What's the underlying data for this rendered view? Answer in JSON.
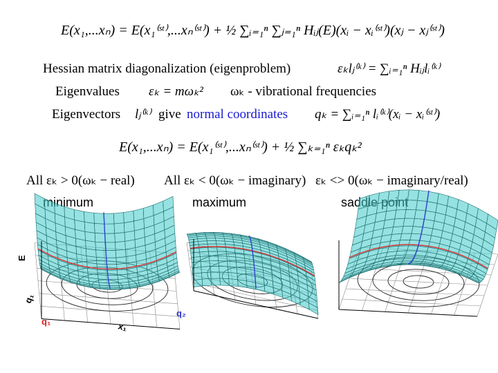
{
  "taylor_expansion": "E(x₁,...xₙ) = E(x₁⁽ˢᵗ⁾,...xₙ⁽ˢᵗ⁾) + ½ ∑ᵢ₌₁ⁿ ∑ⱼ₌₁ⁿ Hᵢⱼ(E)(xᵢ − xᵢ⁽ˢᵗ⁾)(xⱼ − xⱼ⁽ˢᵗ⁾)",
  "hessian": {
    "label": "Hessian matrix diagonalization (eigenproblem)",
    "formula": "εₖlⱼ⁽ᵏ⁾ = ∑ᵢ₌₁ⁿ Hᵢⱼlᵢ⁽ᵏ⁾"
  },
  "eigenvalues": {
    "label": "Eigenvalues",
    "formula": "εₖ = mωₖ²",
    "note": "ωₖ - vibrational frequencies"
  },
  "eigenvectors": {
    "label": "Eigenvectors",
    "symbol": "lⱼ⁽ᵏ⁾",
    "verb": "give",
    "highlight": "normal coordinates",
    "formula": "qₖ = ∑ᵢ₌₁ⁿ lᵢ⁽ᵏ⁾(xᵢ − xᵢ⁽ˢᵗ⁾)"
  },
  "normal_expansion": "E(x₁,...xₙ) = E(x₁⁽ˢᵗ⁾,...xₙ⁽ˢᵗ⁾) + ½ ∑ₖ₌₁ⁿ εₖqₖ²",
  "cases": [
    {
      "condition": "All εₖ > 0(ωₖ − real)",
      "name": "minimum"
    },
    {
      "condition": "All εₖ < 0(ωₖ − imaginary)",
      "name": "maximum"
    },
    {
      "condition": "εₖ <> 0(ωₖ − imaginary/real)",
      "name": "saddle point"
    }
  ],
  "axis_labels": {
    "energy": "E",
    "q1_axis": "q₁",
    "x1": "x₁",
    "q2": "q₂",
    "q1_curve": "q₁"
  }
}
